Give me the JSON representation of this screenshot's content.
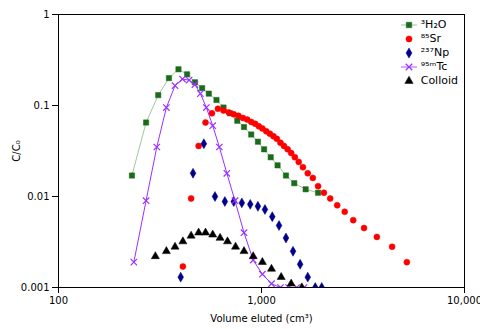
{
  "chart_data": {
    "type": "scatter",
    "title": "",
    "xlabel": "Volume eluted (cm³)",
    "ylabel": "C/C₀",
    "log": true,
    "grid": false,
    "legend": "upper right",
    "xlim": [
      100,
      10000
    ],
    "ylim": [
      0.001,
      1
    ],
    "xticks": [
      100,
      {
        "value": 1000,
        "label": "1,000"
      },
      {
        "value": 10000,
        "label": "10,000"
      }
    ],
    "yticks": [
      0.001,
      0.01,
      0.1,
      1
    ],
    "series": [
      {
        "name": "³H₂O",
        "color": "#1a6b1a",
        "marker": "square",
        "line_style": "solid",
        "x": [
          230,
          270,
          310,
          350,
          390,
          430,
          470,
          510,
          550,
          600,
          650,
          700,
          760,
          820,
          890,
          960,
          1030,
          1110,
          1200,
          1320,
          1450,
          1650,
          1900
        ],
        "values": [
          0.017,
          0.065,
          0.13,
          0.2,
          0.25,
          0.22,
          0.18,
          0.155,
          0.135,
          0.115,
          0.095,
          0.082,
          0.068,
          0.058,
          0.048,
          0.04,
          0.033,
          0.027,
          0.022,
          0.017,
          0.014,
          0.012,
          0.011
        ]
      },
      {
        "name": "⁸⁵Sr",
        "color": "#ff0000",
        "marker": "circle",
        "line_style": "none",
        "x": [
          410,
          450,
          490,
          530,
          570,
          610,
          650,
          690,
          730,
          770,
          810,
          850,
          890,
          930,
          970,
          1010,
          1055,
          1100,
          1145,
          1190,
          1240,
          1290,
          1345,
          1400,
          1460,
          1525,
          1600,
          1690,
          1790,
          1900,
          2030,
          2180,
          2360,
          2570,
          2830,
          3200,
          3700,
          4400,
          5200
        ],
        "values": [
          0.0017,
          0.0095,
          0.036,
          0.065,
          0.082,
          0.092,
          0.088,
          0.084,
          0.08,
          0.077,
          0.073,
          0.07,
          0.066,
          0.063,
          0.059,
          0.056,
          0.052,
          0.049,
          0.046,
          0.043,
          0.039,
          0.036,
          0.033,
          0.03,
          0.027,
          0.024,
          0.021,
          0.018,
          0.016,
          0.013,
          0.011,
          0.0095,
          0.008,
          0.0068,
          0.0055,
          0.0045,
          0.0036,
          0.0028,
          0.0019
        ]
      },
      {
        "name": "²³⁷Np",
        "color": "#00008b",
        "marker": "diamond",
        "line_style": "none",
        "x": [
          400,
          460,
          520,
          590,
          660,
          730,
          800,
          880,
          960,
          1040,
          1130,
          1220,
          1320,
          1430,
          1550,
          1690,
          1840,
          1980
        ],
        "values": [
          0.0013,
          0.018,
          0.038,
          0.01,
          0.0088,
          0.0088,
          0.0085,
          0.0082,
          0.0078,
          0.0072,
          0.006,
          0.0048,
          0.0035,
          0.0025,
          0.0018,
          0.0013,
          0.001,
          0.001
        ]
      },
      {
        "name": "⁹⁵ᵐTc",
        "color": "#9b30ff",
        "marker": "x",
        "line_style": "solid",
        "x": [
          235,
          270,
          305,
          340,
          375,
          408,
          440,
          470,
          500,
          535,
          575,
          620,
          675,
          740,
          820,
          910,
          1010,
          1120,
          1240,
          1360,
          1490,
          1620
        ],
        "values": [
          0.0019,
          0.009,
          0.035,
          0.095,
          0.165,
          0.195,
          0.19,
          0.17,
          0.135,
          0.095,
          0.06,
          0.035,
          0.018,
          0.009,
          0.004,
          0.002,
          0.0014,
          0.0011,
          0.001,
          0.001,
          0.001,
          0.001
        ]
      },
      {
        "name": "Colloid",
        "color": "#000000",
        "marker": "triangle",
        "line_style": "none",
        "x": [
          300,
          340,
          375,
          410,
          450,
          490,
          530,
          575,
          625,
          680,
          745,
          820,
          910,
          1010,
          1120,
          1250,
          1400,
          1580
        ],
        "values": [
          0.0022,
          0.0025,
          0.0028,
          0.0032,
          0.0037,
          0.004,
          0.004,
          0.0038,
          0.0035,
          0.0032,
          0.0028,
          0.0025,
          0.0022,
          0.0019,
          0.0016,
          0.0013,
          0.0011,
          0.001
        ]
      }
    ]
  }
}
